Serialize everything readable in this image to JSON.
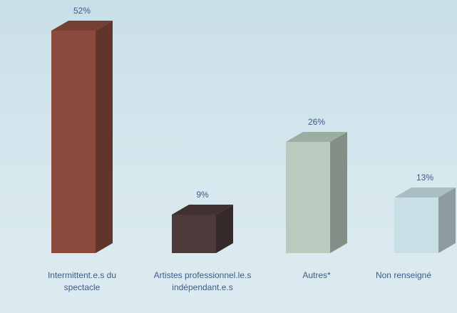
{
  "chart_data": {
    "type": "bar3d",
    "categories": [
      "Intermittent.e.s du spectacle",
      "Artistes professionnel.le.s indépendant.e.s",
      "Autres*",
      "Non renseigné"
    ],
    "values": [
      52,
      9,
      26,
      13
    ],
    "value_labels": [
      "52%",
      "9%",
      "26%",
      "13%"
    ],
    "colors": [
      "#8a4b3c",
      "#4d3a3a",
      "#b9cbbf",
      "#c9dfe6"
    ]
  }
}
